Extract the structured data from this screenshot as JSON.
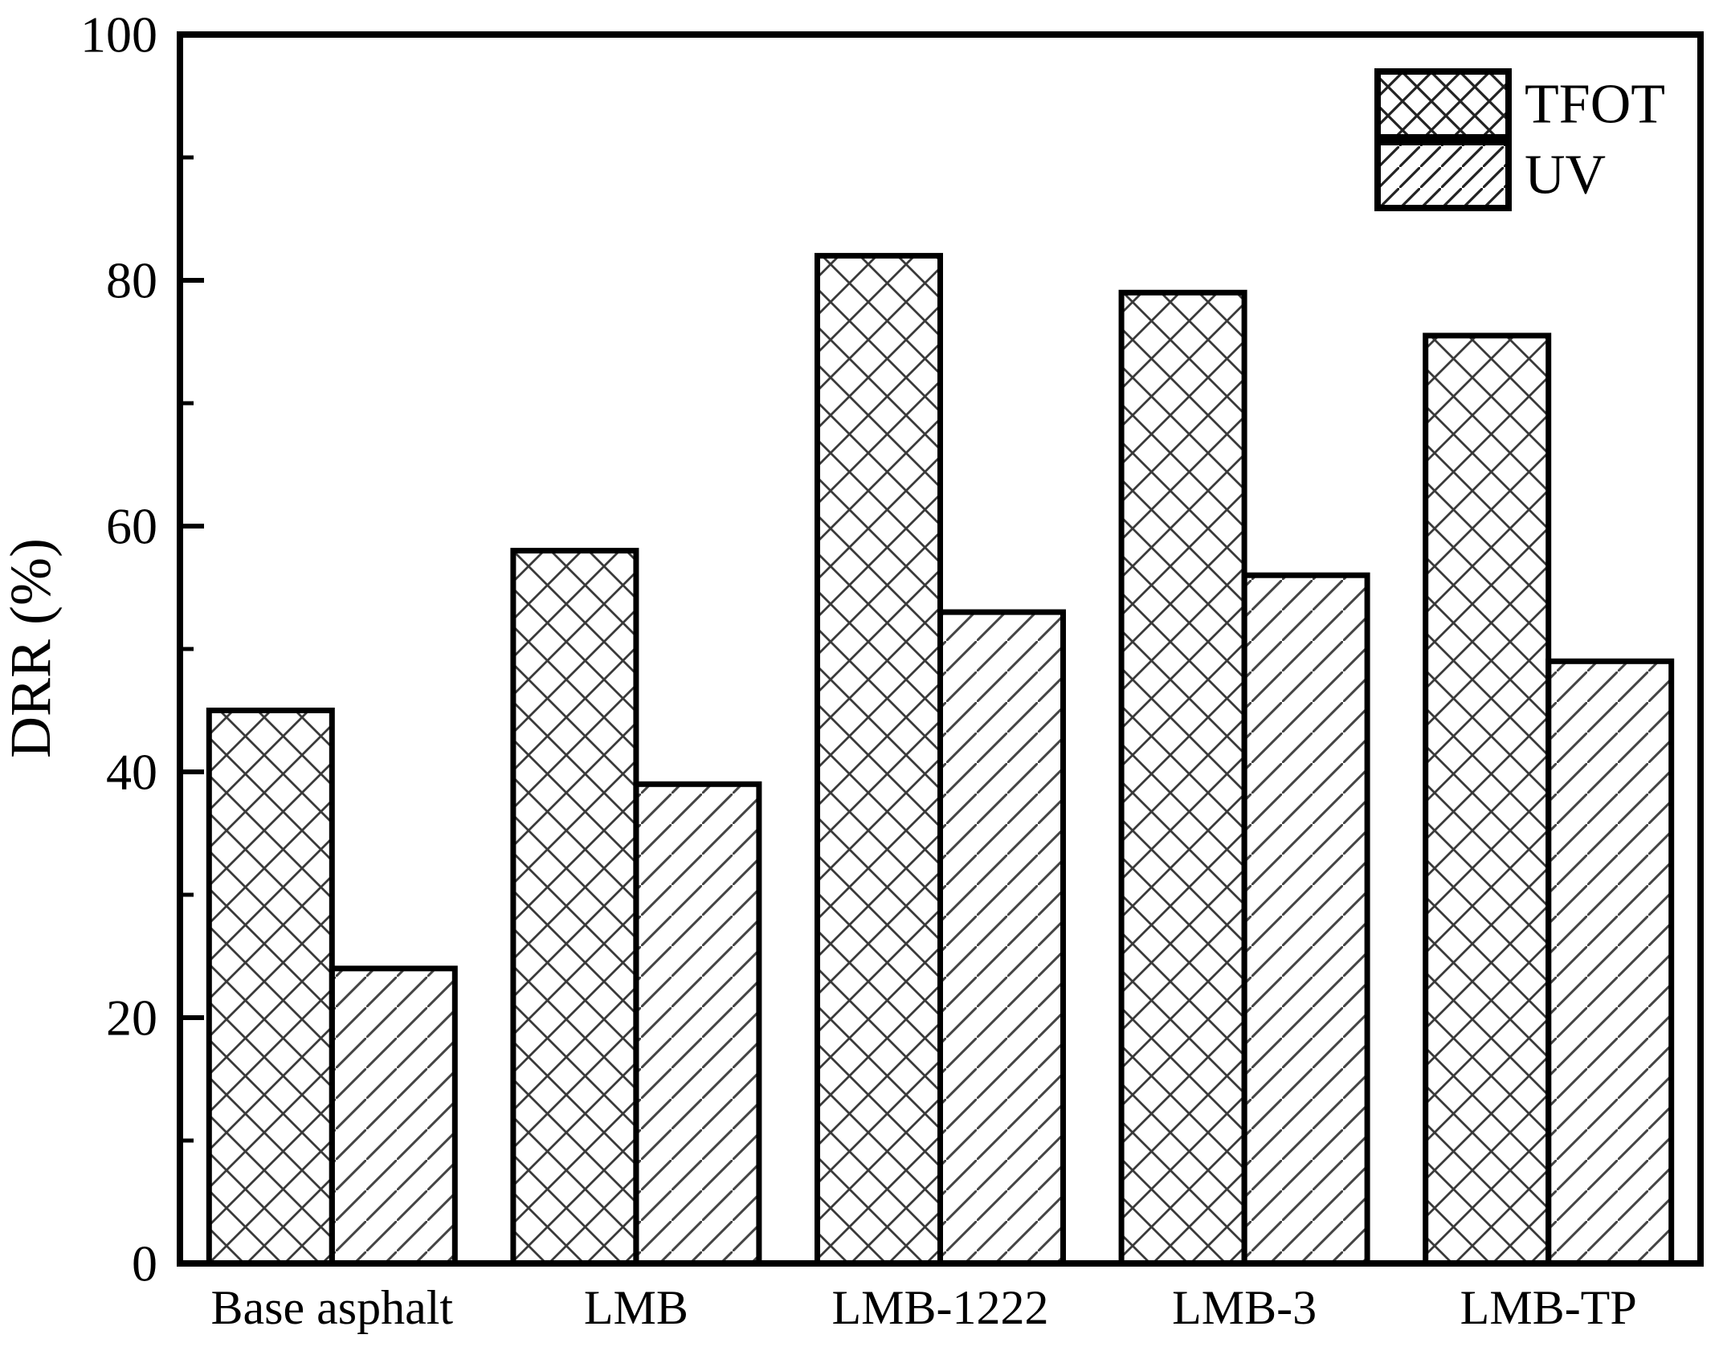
{
  "chart_data": {
    "type": "bar",
    "title": "",
    "xlabel": "",
    "ylabel": "DRR (%)",
    "ylim": [
      0,
      100
    ],
    "yticks_major": [
      0,
      20,
      40,
      60,
      80,
      100
    ],
    "yticks_minor": [
      10,
      30,
      50,
      70,
      90
    ],
    "grid": false,
    "categories": [
      "Base asphalt",
      "LMB",
      "LMB-1222",
      "LMB-3",
      "LMB-TP"
    ],
    "series": [
      {
        "name": "TFOT",
        "pattern": "crosshatch",
        "values": [
          45,
          58,
          82,
          79,
          75.5
        ]
      },
      {
        "name": "UV",
        "pattern": "diagonal",
        "values": [
          24,
          39,
          53,
          56,
          49
        ]
      }
    ],
    "legend_position": "top-right",
    "colors": {
      "background": "#ffffff",
      "axis_stroke": "#000000",
      "bar_stroke": "#000000",
      "hatch_stroke": "#3a3a3a",
      "text": "#000000"
    }
  }
}
